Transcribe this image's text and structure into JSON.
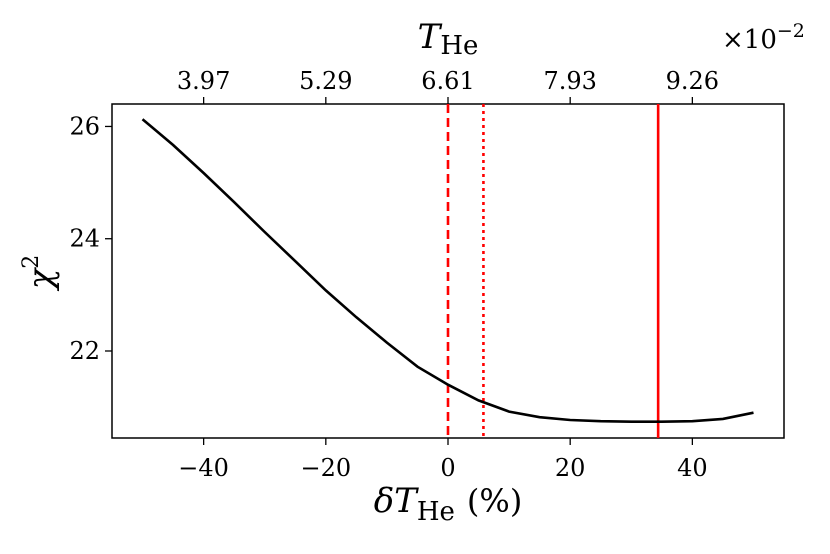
{
  "chart_data": {
    "type": "line",
    "xlabel": "δT",
    "xlabel_sub": "He",
    "xlabel_unit": "(%)",
    "ylabel": "χ",
    "ylabel_sup": "2",
    "top_axis_label": "T",
    "top_axis_label_sub": "He",
    "top_axis_multiplier": "×10",
    "top_axis_multiplier_exp": "−2",
    "xlim": [
      -55,
      55
    ],
    "ylim": [
      20.45,
      26.4
    ],
    "x_ticks": [
      -40,
      -20,
      0,
      20,
      40
    ],
    "x_tick_labels": [
      "−40",
      "−20",
      "0",
      "20",
      "40"
    ],
    "y_ticks": [
      22,
      24,
      26
    ],
    "y_tick_labels": [
      "22",
      "24",
      "26"
    ],
    "top_ticks": [
      -40,
      -20,
      0,
      20,
      40
    ],
    "top_tick_labels": [
      "3.97",
      "5.29",
      "6.61",
      "7.93",
      "9.26"
    ],
    "series": [
      {
        "color": "#000000",
        "x": [
          -50,
          -45,
          -40,
          -35,
          -30,
          -25,
          -20,
          -15,
          -10,
          -5,
          0,
          5,
          10,
          15,
          20,
          25,
          30,
          35,
          40,
          45,
          50
        ],
        "y": [
          26.13,
          25.67,
          25.17,
          24.65,
          24.12,
          23.6,
          23.08,
          22.6,
          22.15,
          21.72,
          21.4,
          21.12,
          20.92,
          20.82,
          20.77,
          20.75,
          20.74,
          20.74,
          20.75,
          20.79,
          20.9
        ]
      }
    ],
    "vlines": [
      {
        "x": 0,
        "style": "dashed",
        "color": "#ff0000"
      },
      {
        "x": 5.8,
        "style": "dotted",
        "color": "#ff0000"
      },
      {
        "x": 34.4,
        "style": "solid",
        "color": "#ff0000"
      }
    ],
    "grid": false
  }
}
